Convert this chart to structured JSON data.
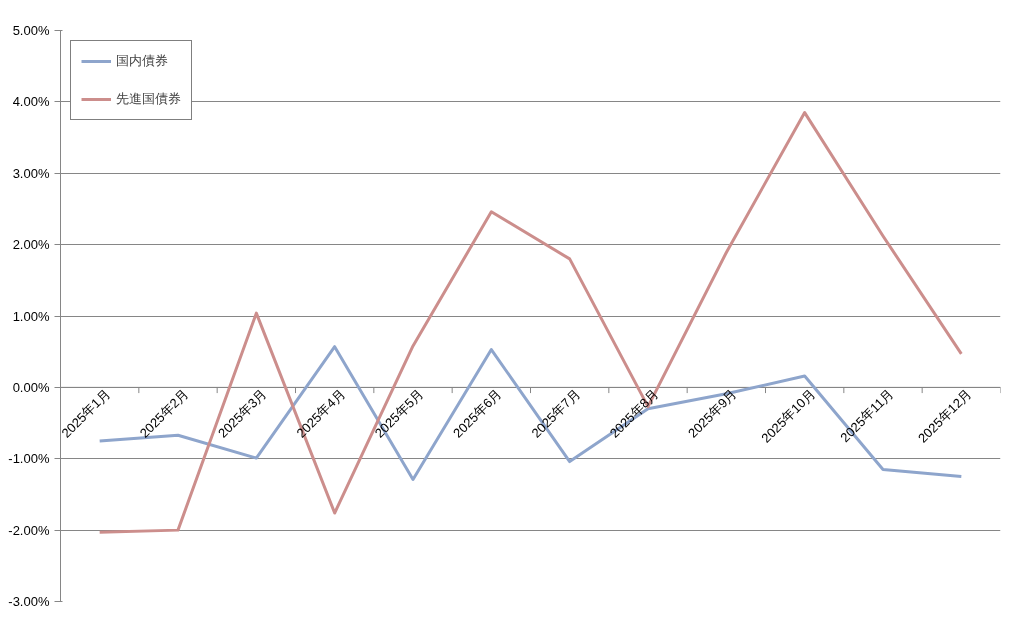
{
  "chart_data": {
    "type": "line",
    "categories": [
      "2025年1月",
      "2025年2月",
      "2025年3月",
      "2025年4月",
      "2025年5月",
      "2025年6月",
      "2025年7月",
      "2025年8月",
      "2025年9月",
      "2025年10月",
      "2025年11月",
      "2025年12月"
    ],
    "series": [
      {
        "name": "国内債券",
        "color": "#8ea5cc",
        "values": [
          -0.75,
          -0.67,
          -0.99,
          0.57,
          -1.29,
          0.53,
          -1.04,
          -0.3,
          -0.09,
          0.16,
          -1.15,
          -1.25
        ]
      },
      {
        "name": "先進国債券",
        "color": "#cc8e8c",
        "values": [
          -2.03,
          -2.0,
          1.04,
          -1.76,
          0.58,
          2.46,
          1.8,
          -0.27,
          1.89,
          3.85,
          2.12,
          0.47
        ]
      }
    ],
    "ylim": [
      -3,
      5
    ],
    "yticks": [
      {
        "value": -3,
        "label": "-3.00%"
      },
      {
        "value": -2,
        "label": "-2.00%"
      },
      {
        "value": -1,
        "label": "-1.00%"
      },
      {
        "value": 0,
        "label": "0.00%"
      },
      {
        "value": 1,
        "label": "1.00%"
      },
      {
        "value": 2,
        "label": "2.00%"
      },
      {
        "value": 3,
        "label": "3.00%"
      },
      {
        "value": 4,
        "label": "4.00%"
      },
      {
        "value": 5,
        "label": "5.00%"
      }
    ],
    "grid": "y",
    "legend": "top left",
    "marker": "none",
    "line_style": "solid"
  }
}
